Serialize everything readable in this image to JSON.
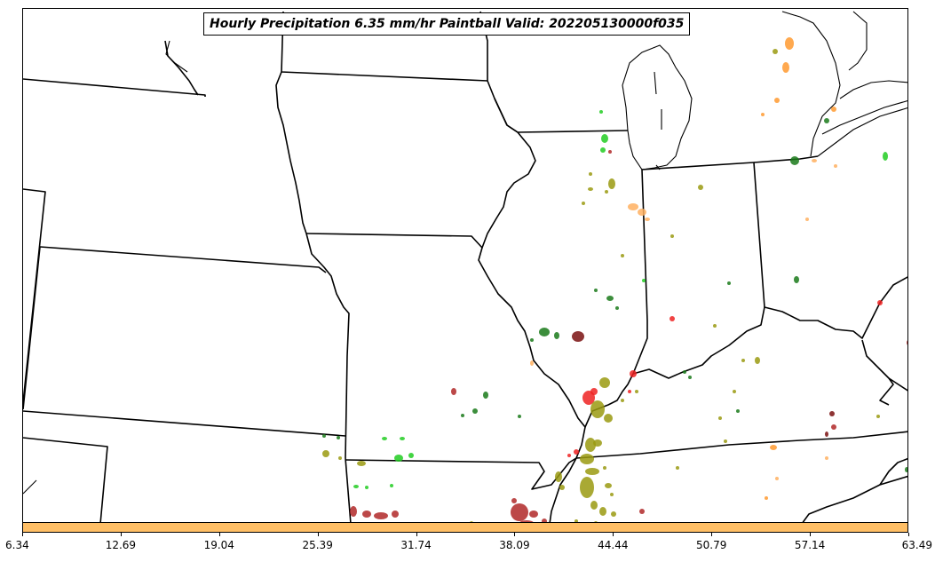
{
  "title": "Hourly Precipitation 6.35 mm/hr Paintball Valid: 202205130000f035",
  "colorbar": {
    "color": "#ffbf66",
    "ticks": [
      "6.34",
      "12.69",
      "19.04",
      "25.39",
      "31.74",
      "38.09",
      "44.44",
      "50.79",
      "57.14",
      "63.49"
    ]
  },
  "colors": {
    "boundary": "#000000",
    "lime": "#22cc22",
    "dark_green": "#1a7a1a",
    "olive": "#9a9a10",
    "orange": "#ff9a30",
    "light_orange": "#ffb060",
    "red": "#ee2222",
    "dark_red": "#7a1010",
    "brown_red": "#b02828"
  }
}
